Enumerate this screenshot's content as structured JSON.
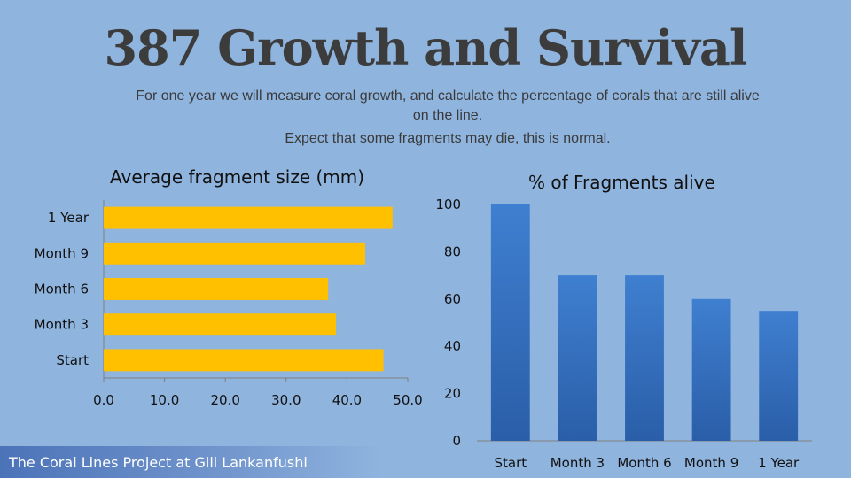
{
  "slide": {
    "title": "387 Growth and Survival",
    "subtitle": "For one year we will measure coral growth, and calculate the percentage of corals that are still alive on the line.",
    "note": "Expect that some fragments may die, this is normal.",
    "footer": "The Coral Lines Project at Gili Lankanfushi"
  },
  "colors": {
    "bar_fill": "#ffc000",
    "column_fill_top": "#3f7fd0",
    "column_fill_bottom": "#2a5ea8",
    "axis": "#7f7f7f"
  },
  "chart_data": [
    {
      "type": "bar",
      "orientation": "horizontal",
      "title": "Average fragment size (mm)",
      "categories": [
        "Start",
        "Month 3",
        "Month 6",
        "Month 9",
        "1 Year"
      ],
      "values": [
        46,
        38.2,
        36.9,
        43,
        47.5
      ],
      "xlim": [
        0,
        50
      ],
      "ticks": [
        "0.0",
        "10.0",
        "20.0",
        "30.0",
        "40.0",
        "50.0"
      ],
      "grid": false
    },
    {
      "type": "bar",
      "orientation": "vertical",
      "title": "% of Fragments alive",
      "categories": [
        "Start",
        "Month 3",
        "Month 6",
        "Month 9",
        "1 Year"
      ],
      "values": [
        100,
        70,
        70,
        60,
        55
      ],
      "ylim": [
        0,
        100
      ],
      "ticks": [
        "0",
        "20",
        "40",
        "60",
        "80",
        "100"
      ],
      "grid": false
    }
  ]
}
